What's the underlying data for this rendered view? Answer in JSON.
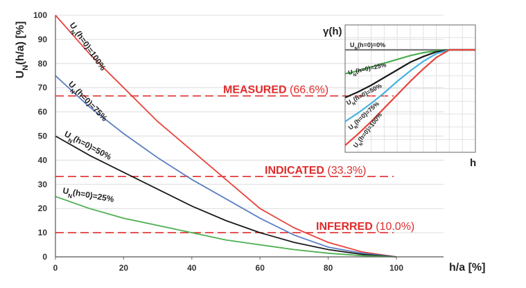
{
  "chart_data": [
    {
      "type": "line",
      "xlabel": "h/a [%]",
      "ylabel": "U_N(h/a) [%]",
      "xlim": [
        0,
        100
      ],
      "ylim": [
        0,
        100
      ],
      "x_ticks": [
        "0",
        "20",
        "40",
        "60",
        "80",
        "100"
      ],
      "y_ticks": [
        "0",
        "10",
        "20",
        "30",
        "40",
        "50",
        "60",
        "70",
        "80",
        "90",
        "100"
      ],
      "grid": "horizontal",
      "series": [
        {
          "name": "U_N(h=0)=100%",
          "color": "#e8423a",
          "x": [
            0,
            10,
            20,
            30,
            40,
            50,
            60,
            70,
            80,
            90,
            100
          ],
          "y": [
            100,
            84,
            70,
            56,
            44,
            32,
            20,
            12,
            6,
            2,
            0
          ]
        },
        {
          "name": "U_N(h=0)=75%",
          "color": "#5b7fc4",
          "x": [
            0,
            10,
            20,
            30,
            40,
            50,
            60,
            70,
            80,
            90,
            100
          ],
          "y": [
            75,
            62,
            51,
            41,
            32,
            24,
            16,
            9,
            4,
            1.5,
            0
          ]
        },
        {
          "name": "U_N(h=0)=50%",
          "color": "#1a1a1a",
          "x": [
            0,
            10,
            20,
            30,
            40,
            50,
            60,
            70,
            80,
            90,
            100
          ],
          "y": [
            50,
            42,
            35,
            28,
            21,
            15,
            10,
            6,
            3,
            1,
            0
          ]
        },
        {
          "name": "U_N(h=0)=25%",
          "color": "#4caf50",
          "x": [
            0,
            10,
            20,
            30,
            40,
            50,
            60,
            70,
            80,
            90,
            100
          ],
          "y": [
            25,
            20,
            16,
            13,
            10,
            7,
            5,
            3,
            1.5,
            0.5,
            0
          ]
        }
      ],
      "thresholds": [
        {
          "label": "MEASURED",
          "value_label": "(66.6%)",
          "y": 66.6,
          "color": "#e02b2b"
        },
        {
          "label": "INDICATED",
          "value_label": "(33.3%)",
          "y": 33.3,
          "color": "#e02b2b"
        },
        {
          "label": "INFERRED",
          "value_label": "(10.0%)",
          "y": 10.0,
          "color": "#e02b2b"
        }
      ]
    },
    {
      "type": "line",
      "ylabel": "γ(h)",
      "xlabel": "h",
      "ylim": [
        0,
        100
      ],
      "grid": "both",
      "series": [
        {
          "name": "U_N(h=0)=0%",
          "color": "#7a7a7a",
          "x": [
            0,
            50,
            100
          ],
          "y": [
            100,
            100,
            100
          ]
        },
        {
          "name": "U_N(h=0)=25%",
          "color": "#4caf50",
          "x": [
            0,
            10,
            20,
            30,
            40,
            50,
            60,
            70,
            80,
            90,
            100
          ],
          "y": [
            75,
            78,
            82,
            86,
            90,
            94,
            97,
            99,
            100,
            100,
            100
          ]
        },
        {
          "name": "U_N(h=0)=50%",
          "color": "#1a1a1a",
          "x": [
            0,
            10,
            20,
            30,
            40,
            50,
            60,
            70,
            80,
            90,
            100
          ],
          "y": [
            50,
            56,
            63,
            71,
            79,
            87,
            93,
            98,
            100,
            100,
            100
          ]
        },
        {
          "name": "U_N(h=0)=75%",
          "color": "#45b3e0",
          "x": [
            0,
            10,
            20,
            30,
            40,
            50,
            60,
            70,
            80,
            90,
            100
          ],
          "y": [
            25,
            34,
            44,
            55,
            67,
            78,
            88,
            96,
            100,
            100,
            100
          ]
        },
        {
          "name": "U_N(h=0)=100%",
          "color": "#e8423a",
          "x": [
            0,
            10,
            20,
            30,
            40,
            50,
            60,
            70,
            80,
            90,
            100
          ],
          "y": [
            0,
            12,
            25,
            39,
            53,
            67,
            80,
            92,
            100,
            100,
            100
          ]
        }
      ]
    }
  ]
}
